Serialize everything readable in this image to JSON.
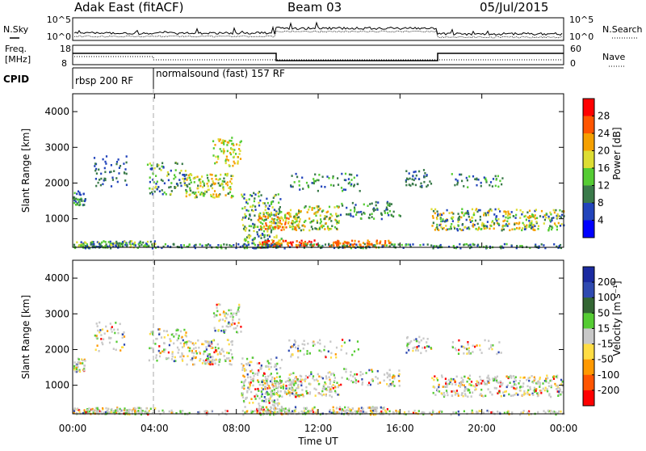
{
  "header": {
    "station": "Adak East (fitACF)",
    "beam": "Beam 03",
    "date": "05/Jul/2015"
  },
  "summary_panels": {
    "noise": {
      "left_label": "N.Sky",
      "right_label": "N.Search",
      "left_ticks": [
        "10^5",
        "10^0"
      ],
      "right_ticks": [
        "10^5",
        "10^0"
      ]
    },
    "freq": {
      "left_label_line1": "Freq.",
      "left_label_line2": "[MHz]",
      "right_label": "Nave",
      "left_ticks": [
        "18",
        "8"
      ],
      "right_ticks": [
        "60",
        "0"
      ]
    },
    "cpid": {
      "label": "CPID",
      "segments": [
        "rbsp 200 RF",
        "normalsound (fast) 157 RF"
      ]
    }
  },
  "chart_data": [
    {
      "type": "heatmap",
      "name": "power",
      "ylabel": "Slant Range [km]",
      "y_ticks": [
        "1000",
        "2000",
        "3000",
        "4000"
      ],
      "ylim": [
        200,
        4500
      ],
      "colorbar_label": "Power [dB]",
      "colorbar_ticks": [
        "4",
        "8",
        "12",
        "16",
        "20",
        "24",
        "28"
      ],
      "colors": [
        "#0000ff",
        "#2244bb",
        "#3a7a4a",
        "#55cc33",
        "#dddd33",
        "#f5a000",
        "#ff5500",
        "#ff0000"
      ]
    },
    {
      "type": "heatmap",
      "name": "velocity",
      "ylabel": "Slant Range [km]",
      "y_ticks": [
        "1000",
        "2000",
        "3000",
        "4000"
      ],
      "ylim": [
        200,
        4500
      ],
      "colorbar_label": "Velocity [m s⁻¹]",
      "colorbar_ticks": [
        "200",
        "100",
        "50",
        "15",
        "-15",
        "-50",
        "-100",
        "-200"
      ],
      "colors": [
        "#1a2aa0",
        "#2f4ab0",
        "#336633",
        "#55cc33",
        "#c8c8c8",
        "#ffdd44",
        "#ff9900",
        "#ff5500",
        "#ff0000"
      ]
    }
  ],
  "x_axis": {
    "label": "Time UT",
    "ticks": [
      "00:00",
      "04:00",
      "08:00",
      "12:00",
      "16:00",
      "20:00",
      "00:00"
    ]
  }
}
